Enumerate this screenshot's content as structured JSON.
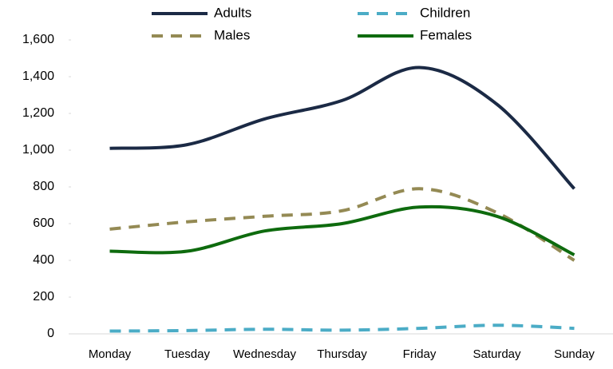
{
  "chart_data": {
    "type": "line",
    "categories": [
      "Monday",
      "Tuesday",
      "Wednesday",
      "Thursday",
      "Friday",
      "Saturday",
      "Sunday"
    ],
    "series": [
      {
        "name": "Adults",
        "color": "#1b2a45",
        "dash": false,
        "values": [
          1010,
          1030,
          1170,
          1270,
          1450,
          1250,
          790
        ]
      },
      {
        "name": "Children",
        "color": "#4bacc6",
        "dash": true,
        "values": [
          15,
          18,
          25,
          20,
          30,
          47,
          30
        ]
      },
      {
        "name": "Males",
        "color": "#948a54",
        "dash": true,
        "values": [
          570,
          610,
          640,
          670,
          790,
          660,
          400
        ]
      },
      {
        "name": "Females",
        "color": "#0e6b0e",
        "dash": false,
        "values": [
          450,
          450,
          560,
          600,
          690,
          640,
          430
        ]
      }
    ],
    "ylim": [
      0,
      1600
    ],
    "yticks": [
      0,
      200,
      400,
      600,
      800,
      {
        "value": 1000,
        "label": "1,000"
      },
      {
        "value": 1200,
        "label": "1,200"
      },
      {
        "value": 1400,
        "label": "1,400"
      },
      {
        "value": 1600,
        "label": "1,600"
      }
    ],
    "grid": false,
    "legend": "top"
  }
}
